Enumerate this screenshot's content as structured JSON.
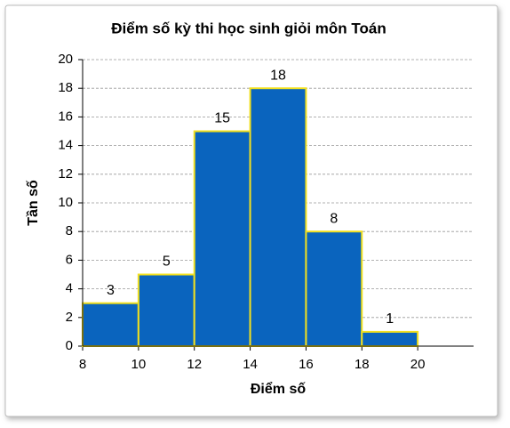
{
  "chart_data": {
    "type": "histogram",
    "title": "Điểm số kỳ thi học sinh giỏi môn Toán",
    "x_label": "Điểm số",
    "y_label": "Tần số",
    "bins": [
      8,
      10,
      12,
      14,
      16,
      18,
      20
    ],
    "values": [
      3,
      5,
      15,
      18,
      8,
      1
    ],
    "color": "#0a64be",
    "edgecolor": "#f2e01e",
    "xlim": [
      8,
      22
    ],
    "xticks": [
      8,
      10,
      12,
      14,
      16,
      18,
      20
    ],
    "ylim": [
      0,
      20
    ],
    "yticks": [
      0,
      2,
      4,
      6,
      8,
      10,
      12,
      14,
      16,
      18,
      20
    ],
    "grid": true
  }
}
